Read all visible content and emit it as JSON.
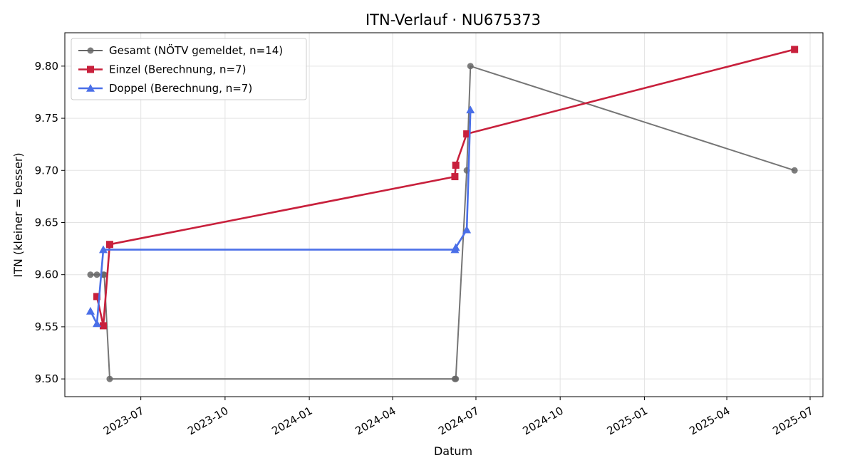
{
  "chart_data": {
    "type": "line",
    "title": "ITN-Verlauf · NU675373",
    "xlabel": "Datum",
    "ylabel": "ITN  (kleiner = besser)",
    "x_type": "date",
    "xlim": [
      "2023-04-09",
      "2025-07-15"
    ],
    "ylim": [
      9.483,
      9.832
    ],
    "x_ticks": [
      {
        "date": "2023-07-01",
        "label": "2023-07"
      },
      {
        "date": "2023-10-01",
        "label": "2023-10"
      },
      {
        "date": "2024-01-01",
        "label": "2024-01"
      },
      {
        "date": "2024-04-01",
        "label": "2024-04"
      },
      {
        "date": "2024-07-01",
        "label": "2024-07"
      },
      {
        "date": "2024-10-01",
        "label": "2024-10"
      },
      {
        "date": "2025-01-01",
        "label": "2025-01"
      },
      {
        "date": "2025-04-01",
        "label": "2025-04"
      },
      {
        "date": "2025-07-01",
        "label": "2025-07"
      }
    ],
    "y_ticks": [
      {
        "value": 9.5,
        "label": "9.50"
      },
      {
        "value": 9.55,
        "label": "9.55"
      },
      {
        "value": 9.6,
        "label": "9.60"
      },
      {
        "value": 9.65,
        "label": "9.65"
      },
      {
        "value": 9.7,
        "label": "9.70"
      },
      {
        "value": 9.75,
        "label": "9.75"
      },
      {
        "value": 9.8,
        "label": "9.80"
      }
    ],
    "grid": true,
    "legend_position": "upper-left",
    "series": [
      {
        "name": "Gesamt (NÖTV gemeldet, n=14)",
        "color": "#666666",
        "marker": "circle",
        "x": [
          "2023-05-07",
          "2023-05-14",
          "2023-05-21",
          "2023-05-22",
          "2023-05-28",
          "2024-06-08",
          "2024-06-09",
          "2024-06-21",
          "2024-06-25",
          "2025-06-14"
        ],
        "y": [
          9.6,
          9.6,
          9.6,
          9.6,
          9.5,
          9.5,
          9.5,
          9.7,
          9.8,
          9.7
        ]
      },
      {
        "name": "Einzel (Berechnung, n=7)",
        "color": "#c8203c",
        "marker": "square",
        "x": [
          "2023-05-14",
          "2023-05-21",
          "2023-05-28",
          "2024-06-08",
          "2024-06-09",
          "2024-06-21",
          "2025-06-14"
        ],
        "y": [
          9.579,
          9.551,
          9.629,
          9.694,
          9.705,
          9.735,
          9.816
        ]
      },
      {
        "name": "Doppel (Berechnung, n=7)",
        "color": "#4a6fe8",
        "marker": "triangle",
        "x": [
          "2023-05-07",
          "2023-05-14",
          "2023-05-21",
          "2024-06-08",
          "2024-06-09",
          "2024-06-21",
          "2024-06-25"
        ],
        "y": [
          9.565,
          9.553,
          9.624,
          9.624,
          9.626,
          9.643,
          9.758
        ]
      }
    ]
  }
}
